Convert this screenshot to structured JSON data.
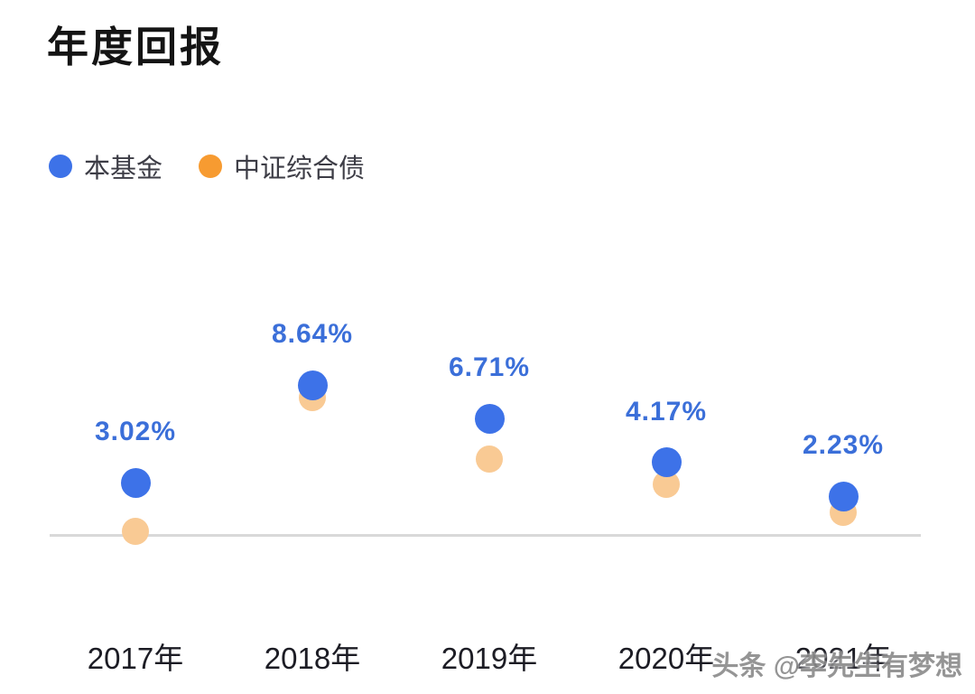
{
  "title": "年度回报",
  "legend": [
    {
      "label": "本基金",
      "color": "#3D72E8"
    },
    {
      "label": "中证综合债",
      "color": "#F79B31"
    }
  ],
  "watermark": "头条 @李先生有梦想",
  "chart_data": {
    "type": "scatter",
    "title": "年度回报",
    "categories": [
      "2017年",
      "2018年",
      "2019年",
      "2020年",
      "2021年"
    ],
    "series": [
      {
        "name": "本基金",
        "color": "#3D72E8",
        "values": [
          3.02,
          8.64,
          6.71,
          4.17,
          2.23
        ],
        "labels": [
          "3.02%",
          "8.64%",
          "6.71%",
          "4.17%",
          "2.23%"
        ]
      },
      {
        "name": "中证综合债",
        "color": "#F9CA94",
        "values": [
          0.2,
          7.9,
          4.4,
          2.9,
          1.3
        ],
        "labels": []
      }
    ],
    "ylim": [
      0,
      10
    ],
    "baseline_value": 0,
    "grid": false,
    "legend_position": "top-left",
    "value_label_color": "#3B6FD9"
  }
}
